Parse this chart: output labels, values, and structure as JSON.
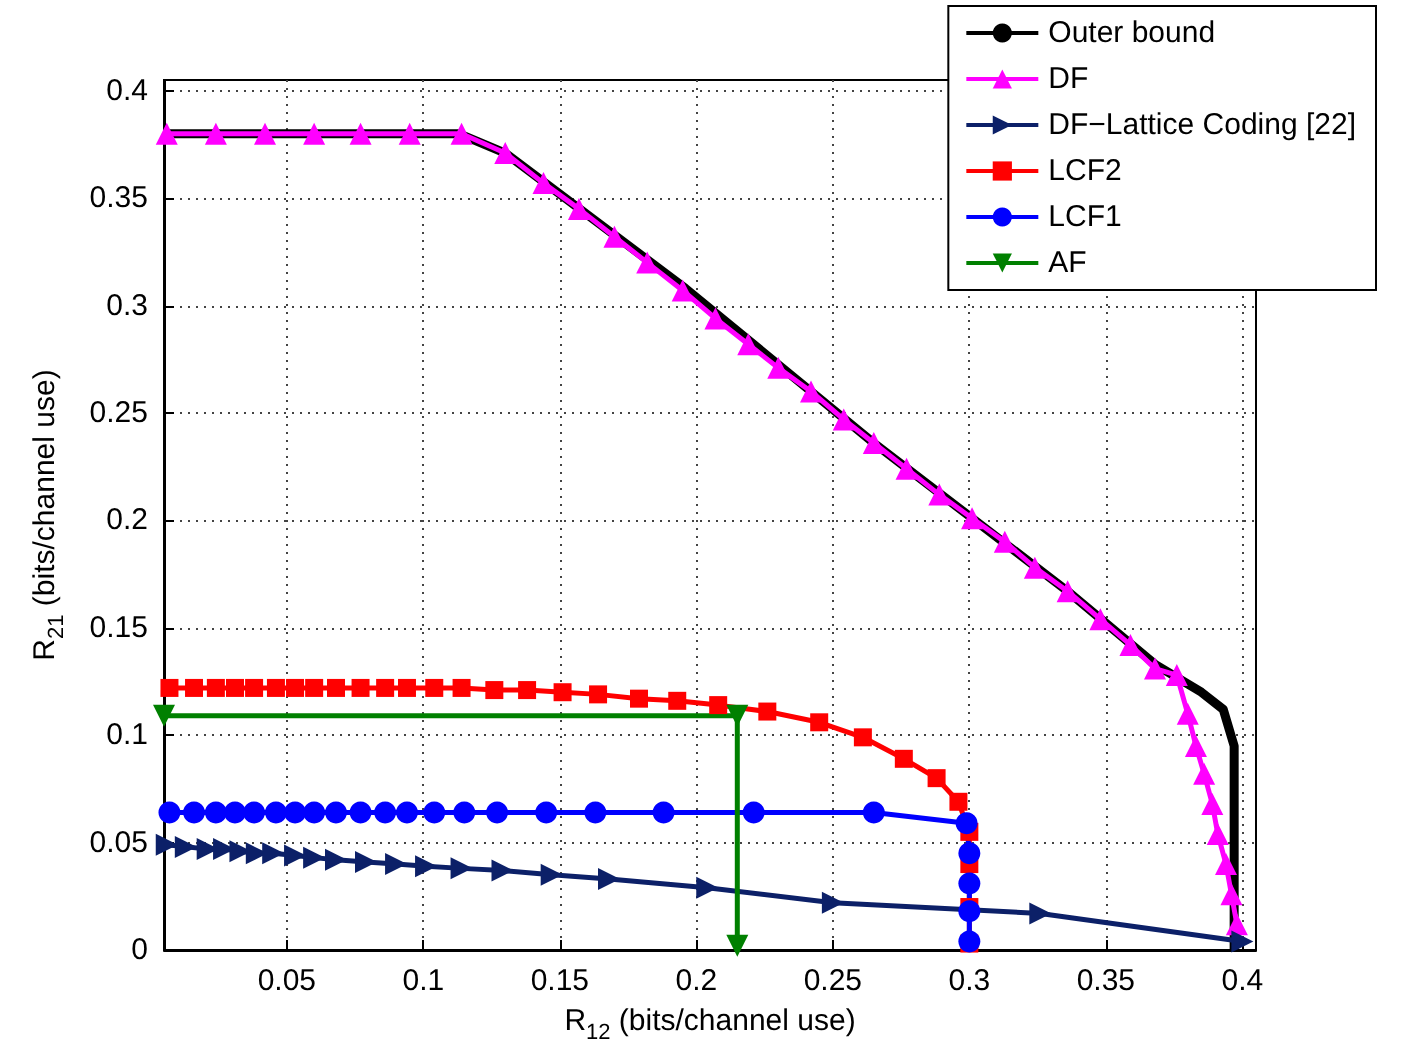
{
  "chart_data": {
    "type": "line",
    "xlabel": "R$_{12}$ (bits/channel use)",
    "ylabel": "R$_{21}$ (bits/channel use)",
    "xlim": [
      0.005,
      0.405
    ],
    "ylim": [
      0,
      0.405
    ],
    "xticks": [
      0.05,
      0.1,
      0.15,
      0.2,
      0.25,
      0.3,
      0.35,
      0.4
    ],
    "yticks": [
      0,
      0.05,
      0.1,
      0.15,
      0.2,
      0.25,
      0.3,
      0.35,
      0.4
    ],
    "grid": true,
    "legend": "top right",
    "series": [
      {
        "name": "Outer bound",
        "color": "#000000",
        "marker": "none",
        "x": [
          0.005,
          0.113,
          0.13,
          0.196,
          0.265,
          0.336,
          0.368,
          0.385,
          0.393,
          0.397,
          0.397
        ],
        "values": [
          0.38,
          0.38,
          0.371,
          0.308,
          0.236,
          0.167,
          0.133,
          0.12,
          0.112,
          0.095,
          0
        ]
      },
      {
        "name": "DF",
        "color": "#ff00ff",
        "marker": "triangle",
        "x": [
          0.006,
          0.024,
          0.042,
          0.06,
          0.077,
          0.095,
          0.114,
          0.13,
          0.144,
          0.157,
          0.17,
          0.182,
          0.195,
          0.207,
          0.219,
          0.23,
          0.242,
          0.254,
          0.265,
          0.277,
          0.289,
          0.301,
          0.313,
          0.324,
          0.336,
          0.348,
          0.359,
          0.368,
          0.376,
          0.38,
          0.383,
          0.386,
          0.389,
          0.391,
          0.394,
          0.396,
          0.398
        ],
        "values": [
          0.38,
          0.38,
          0.38,
          0.38,
          0.38,
          0.38,
          0.38,
          0.371,
          0.357,
          0.345,
          0.332,
          0.32,
          0.307,
          0.294,
          0.282,
          0.271,
          0.26,
          0.247,
          0.236,
          0.224,
          0.212,
          0.201,
          0.19,
          0.178,
          0.167,
          0.154,
          0.142,
          0.131,
          0.128,
          0.11,
          0.095,
          0.082,
          0.068,
          0.054,
          0.04,
          0.026,
          0.012
        ]
      },
      {
        "name": "DF−Lattice Coding [22]",
        "color": "#0c2068",
        "marker": "triangle-right",
        "x": [
          0.006,
          0.013,
          0.021,
          0.027,
          0.033,
          0.039,
          0.045,
          0.053,
          0.06,
          0.068,
          0.079,
          0.09,
          0.101,
          0.114,
          0.129,
          0.147,
          0.168,
          0.204,
          0.25,
          0.326,
          0.4
        ],
        "values": [
          0.049,
          0.048,
          0.047,
          0.047,
          0.046,
          0.045,
          0.045,
          0.044,
          0.043,
          0.042,
          0.041,
          0.04,
          0.039,
          0.038,
          0.037,
          0.035,
          0.033,
          0.029,
          0.022,
          0.017,
          0.004
        ]
      },
      {
        "name": "LCF2",
        "color": "#ff0000",
        "marker": "square",
        "x": [
          0.007,
          0.016,
          0.024,
          0.031,
          0.038,
          0.046,
          0.053,
          0.06,
          0.068,
          0.077,
          0.086,
          0.094,
          0.104,
          0.114,
          0.126,
          0.138,
          0.151,
          0.164,
          0.179,
          0.193,
          0.208,
          0.226,
          0.245,
          0.261,
          0.276,
          0.288,
          0.296,
          0.3,
          0.3,
          0.3,
          0.3
        ],
        "values": [
          0.122,
          0.122,
          0.122,
          0.122,
          0.122,
          0.122,
          0.122,
          0.122,
          0.122,
          0.122,
          0.122,
          0.122,
          0.122,
          0.122,
          0.121,
          0.121,
          0.12,
          0.119,
          0.117,
          0.116,
          0.114,
          0.111,
          0.106,
          0.099,
          0.089,
          0.08,
          0.069,
          0.055,
          0.04,
          0.02,
          0.003
        ]
      },
      {
        "name": "LCF1",
        "color": "#0000ff",
        "marker": "circle",
        "x": [
          0.007,
          0.016,
          0.024,
          0.031,
          0.038,
          0.046,
          0.053,
          0.06,
          0.068,
          0.077,
          0.086,
          0.094,
          0.104,
          0.115,
          0.127,
          0.145,
          0.163,
          0.188,
          0.221,
          0.265,
          0.299,
          0.3,
          0.3,
          0.3,
          0.3
        ],
        "values": [
          0.064,
          0.064,
          0.064,
          0.064,
          0.064,
          0.064,
          0.064,
          0.064,
          0.064,
          0.064,
          0.064,
          0.064,
          0.064,
          0.064,
          0.064,
          0.064,
          0.064,
          0.064,
          0.064,
          0.064,
          0.059,
          0.045,
          0.031,
          0.018,
          0.004
        ]
      },
      {
        "name": "AF",
        "color": "#008000",
        "marker": "triangle-down",
        "x": [
          0.005,
          0.215,
          0.215
        ],
        "values": [
          0.109,
          0.109,
          0.002
        ]
      }
    ]
  }
}
